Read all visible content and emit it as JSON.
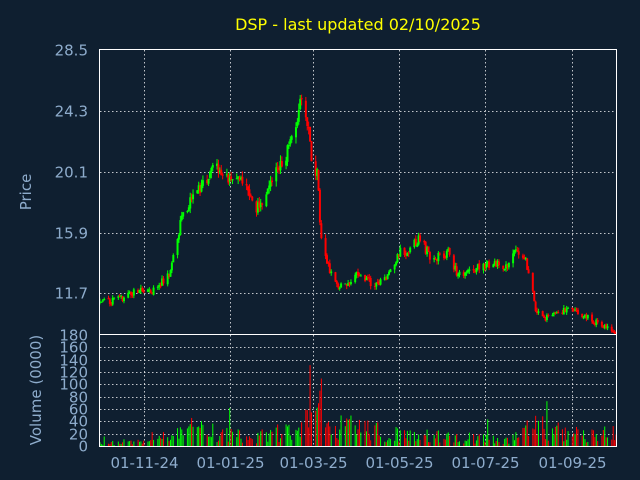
{
  "colors": {
    "background": "#0f1f30",
    "frame": "#ffffff",
    "grid": "#ffffff",
    "up": "#00ff00",
    "down": "#ff0000",
    "text": "#8eaccc",
    "title": "#ffff00"
  },
  "chart_data": {
    "type": "candlestick",
    "title": "DSP - last updated 02/10/2025",
    "price_panel": {
      "ylabel": "Price",
      "yticks": [
        "28.5",
        "24.3",
        "20.1",
        "15.9",
        "11.7"
      ],
      "ylim": [
        8.9,
        28.5
      ],
      "grid": true
    },
    "volume_panel": {
      "ylabel": "Volume (0000)",
      "yticks": [
        "180",
        "160",
        "140",
        "120",
        "100",
        "80",
        "60",
        "40",
        "20",
        "0"
      ],
      "ylim": [
        0,
        180
      ],
      "grid": true
    },
    "xticks": [
      "01-11-24",
      "01-01-25",
      "01-03-25",
      "01-05-25",
      "01-07-25",
      "01-09-25"
    ],
    "x_range": [
      "2024-10-01",
      "2025-10-02"
    ],
    "price_path": [
      [
        "2024-10-01",
        11.1
      ],
      [
        "2024-10-15",
        11.3
      ],
      [
        "2024-10-25",
        11.8
      ],
      [
        "2024-11-08",
        11.9
      ],
      [
        "2024-11-20",
        13.2
      ],
      [
        "2024-11-27",
        16.5
      ],
      [
        "2024-12-05",
        18.3
      ],
      [
        "2024-12-15",
        19.3
      ],
      [
        "2024-12-22",
        20.6
      ],
      [
        "2024-12-30",
        19.8
      ],
      [
        "2025-01-08",
        19.4
      ],
      [
        "2025-01-14",
        18.8
      ],
      [
        "2025-01-20",
        17.5
      ],
      [
        "2025-01-27",
        18.5
      ],
      [
        "2025-02-03",
        20.0
      ],
      [
        "2025-02-10",
        21.2
      ],
      [
        "2025-02-17",
        23.6
      ],
      [
        "2025-02-21",
        25.5
      ],
      [
        "2025-02-25",
        23.5
      ],
      [
        "2025-03-01",
        20.5
      ],
      [
        "2025-03-04",
        20.0
      ],
      [
        "2025-03-07",
        15.2
      ],
      [
        "2025-03-11",
        13.8
      ],
      [
        "2025-03-17",
        12.3
      ],
      [
        "2025-03-27",
        12.5
      ],
      [
        "2025-04-03",
        13.2
      ],
      [
        "2025-04-13",
        12.3
      ],
      [
        "2025-04-22",
        12.8
      ],
      [
        "2025-05-01",
        14.5
      ],
      [
        "2025-05-08",
        14.7
      ],
      [
        "2025-05-15",
        15.5
      ],
      [
        "2025-05-25",
        14.0
      ],
      [
        "2025-06-05",
        14.5
      ],
      [
        "2025-06-12",
        13.0
      ],
      [
        "2025-06-25",
        13.4
      ],
      [
        "2025-07-05",
        13.8
      ],
      [
        "2025-07-15",
        13.5
      ],
      [
        "2025-07-24",
        14.8
      ],
      [
        "2025-07-30",
        14.0
      ],
      [
        "2025-08-03",
        12.2
      ],
      [
        "2025-08-06",
        10.5
      ],
      [
        "2025-08-12",
        10.0
      ],
      [
        "2025-08-20",
        10.4
      ],
      [
        "2025-08-30",
        10.6
      ],
      [
        "2025-09-10",
        10.1
      ],
      [
        "2025-09-20",
        9.6
      ],
      [
        "2025-09-28",
        9.2
      ],
      [
        "2025-10-02",
        9.1
      ]
    ],
    "volume_profile": [
      [
        "2024-10-01",
        5
      ],
      [
        "2024-11-10",
        8
      ],
      [
        "2024-11-18",
        22
      ],
      [
        "2024-12-05",
        30
      ],
      [
        "2025-01-15",
        15
      ],
      [
        "2025-02-10",
        25
      ],
      [
        "2025-02-22",
        35
      ],
      [
        "2025-03-04",
        70
      ],
      [
        "2025-03-12",
        45
      ],
      [
        "2025-04-01",
        30
      ],
      [
        "2025-05-01",
        20
      ],
      [
        "2025-06-10",
        15
      ],
      [
        "2025-07-20",
        12
      ],
      [
        "2025-08-02",
        35
      ],
      [
        "2025-08-15",
        30
      ],
      [
        "2025-09-15",
        20
      ],
      [
        "2025-10-02",
        25
      ]
    ]
  }
}
